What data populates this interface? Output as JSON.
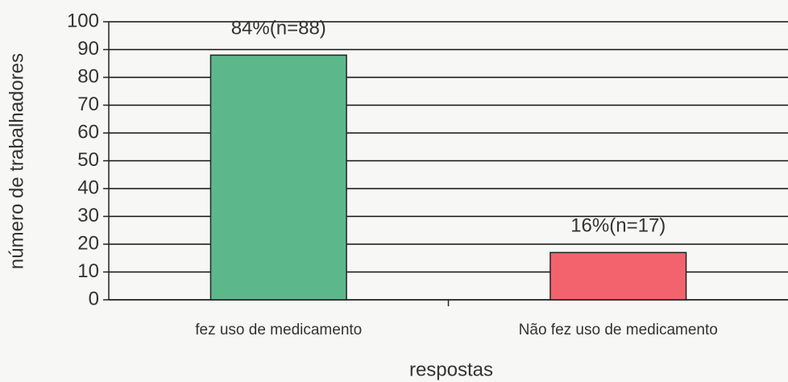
{
  "chart_data": {
    "type": "bar",
    "categories": [
      "fez uso de medicamento",
      "Não fez uso de medicamento"
    ],
    "values": [
      88,
      17
    ],
    "value_labels": [
      "84%(n=88)",
      "16%(n=17)"
    ],
    "colors": [
      "#5cb88a",
      "#f2636d"
    ],
    "xlabel": "respostas",
    "ylabel": "número de trabalhadores",
    "ylim": [
      0,
      100
    ],
    "yticks": [
      0,
      10,
      20,
      30,
      40,
      50,
      60,
      70,
      80,
      90,
      100
    ],
    "grid": true
  }
}
